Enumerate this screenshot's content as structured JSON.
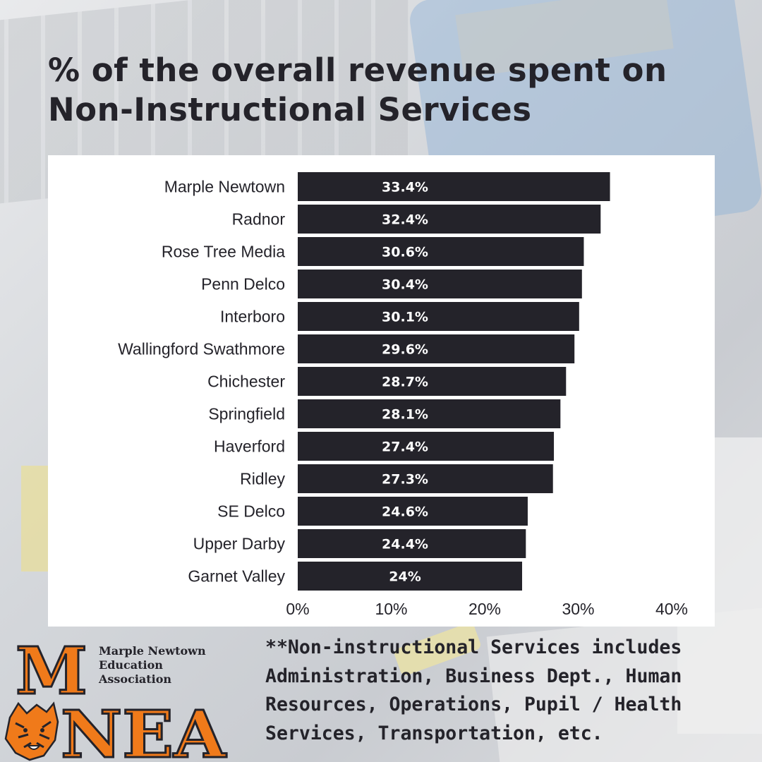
{
  "title": "% of the overall revenue spent on Non-Instructional Services",
  "note": "**Non-instructional Services includes Administration, Business Dept., Human Resources, Operations, Pupil / Health Services, Transportation, etc.",
  "logo": {
    "org_lines": [
      "Marple Newtown",
      "Education",
      "Association"
    ],
    "acronym": "MNEA",
    "mascot_icon": "tiger-head-icon"
  },
  "colors": {
    "bar": "#24232a",
    "bar_label": "#ffffff",
    "accent": "#f07a1a",
    "text": "#24232a"
  },
  "chart_data": {
    "type": "bar",
    "orientation": "horizontal",
    "categories": [
      "Marple Newtown",
      "Radnor",
      "Rose Tree Media",
      "Penn Delco",
      "Interboro",
      "Wallingford Swathmore",
      "Chichester",
      "Springfield",
      "Haverford",
      "Ridley",
      "SE Delco",
      "Upper Darby",
      "Garnet Valley"
    ],
    "values": [
      33.4,
      32.4,
      30.6,
      30.4,
      30.1,
      29.6,
      28.7,
      28.1,
      27.4,
      27.3,
      24.6,
      24.4,
      24
    ],
    "value_labels": [
      "33.4%",
      "32.4%",
      "30.6%",
      "30.4%",
      "30.1%",
      "29.6%",
      "28.7%",
      "28.1%",
      "27.4%",
      "27.3%",
      "24.6%",
      "24.4%",
      "24%"
    ],
    "x_ticks": [
      0,
      10,
      20,
      30,
      40
    ],
    "x_tick_labels": [
      "0%",
      "10%",
      "20%",
      "30%",
      "40%"
    ],
    "xlim": [
      0,
      40
    ],
    "grid": false,
    "legend": "none"
  }
}
